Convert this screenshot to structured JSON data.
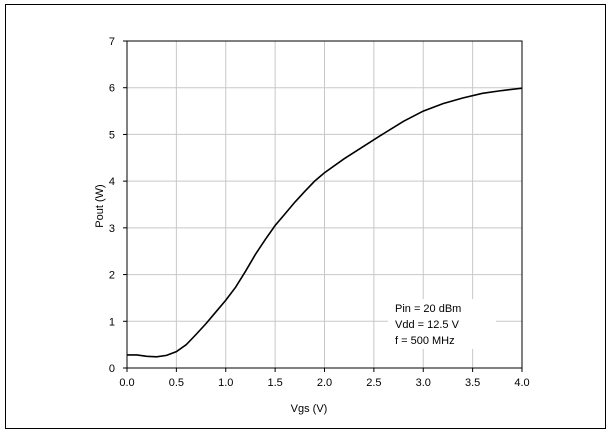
{
  "chart_data": {
    "type": "line",
    "title": "",
    "xlabel": "Vgs (V)",
    "ylabel": "Pout (W)",
    "xlim": [
      0,
      4
    ],
    "ylim": [
      0,
      7
    ],
    "grid": true,
    "x_ticks": [
      "0.0",
      "0.5",
      "1.0",
      "1.5",
      "2.0",
      "2.5",
      "3.0",
      "3.5",
      "4.0"
    ],
    "y_ticks": [
      "0",
      "1",
      "2",
      "3",
      "4",
      "5",
      "6",
      "7"
    ],
    "annotations": [
      "Pin = 20 dBm",
      "Vdd = 12.5 V",
      "f = 500 MHz"
    ],
    "series": [
      {
        "color": "#000000",
        "x": [
          0.0,
          0.1,
          0.2,
          0.3,
          0.4,
          0.5,
          0.6,
          0.7,
          0.8,
          0.9,
          1.0,
          1.1,
          1.2,
          1.3,
          1.4,
          1.5,
          1.6,
          1.7,
          1.8,
          1.9,
          2.0,
          2.2,
          2.4,
          2.6,
          2.8,
          3.0,
          3.2,
          3.4,
          3.6,
          3.8,
          4.0
        ],
        "y": [
          0.28,
          0.28,
          0.25,
          0.24,
          0.27,
          0.35,
          0.5,
          0.72,
          0.95,
          1.2,
          1.45,
          1.73,
          2.07,
          2.43,
          2.75,
          3.05,
          3.3,
          3.55,
          3.78,
          4.0,
          4.18,
          4.48,
          4.75,
          5.02,
          5.28,
          5.5,
          5.66,
          5.78,
          5.88,
          5.94,
          5.99
        ]
      }
    ]
  }
}
